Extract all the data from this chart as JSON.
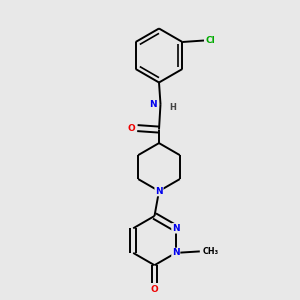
{
  "background_color": "#e8e8e8",
  "atom_colors": {
    "C": "#000000",
    "N": "#0000ee",
    "O": "#ee0000",
    "Cl": "#00aa00",
    "H": "#444444"
  },
  "bond_color": "#000000",
  "bond_width": 1.4,
  "figsize": [
    3.0,
    3.0
  ],
  "dpi": 100,
  "xlim": [
    0,
    10
  ],
  "ylim": [
    0,
    10
  ]
}
